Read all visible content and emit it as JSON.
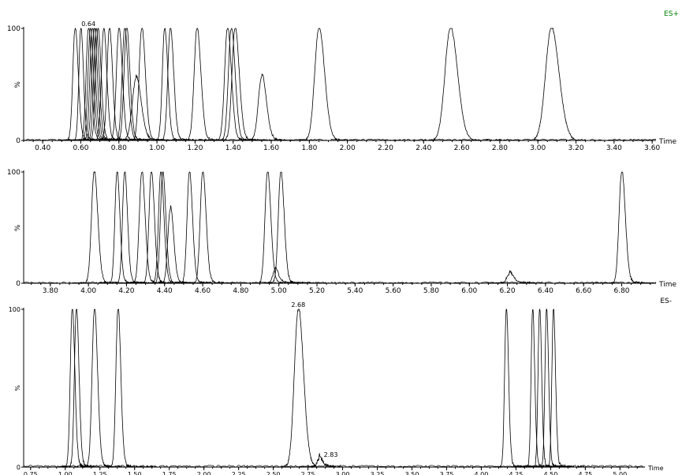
{
  "chart_data": [
    {
      "type": "line",
      "mode_label": "ES+",
      "mode_color": "#008000",
      "xlabel": "Time",
      "ylabel": "%",
      "xlim": [
        0.3,
        3.62
      ],
      "ylim": [
        0,
        100
      ],
      "x_ticks": [
        "0.40",
        "0.60",
        "0.80",
        "1.00",
        "1.20",
        "1.40",
        "1.60",
        "1.80",
        "2.00",
        "2.20",
        "2.40",
        "2.60",
        "2.80",
        "3.00",
        "3.20",
        "3.40",
        "3.60"
      ],
      "y_ticks": [
        "0",
        "%",
        "100"
      ],
      "annotations": [
        {
          "x": 0.64,
          "label": "0.64"
        }
      ],
      "peaks": [
        {
          "rt": 0.57,
          "height": 100,
          "width": 0.012
        },
        {
          "rt": 0.6,
          "height": 100,
          "width": 0.01
        },
        {
          "rt": 0.64,
          "height": 100,
          "width": 0.012
        },
        {
          "rt": 0.65,
          "height": 100,
          "width": 0.012
        },
        {
          "rt": 0.66,
          "height": 100,
          "width": 0.012
        },
        {
          "rt": 0.67,
          "height": 100,
          "width": 0.012
        },
        {
          "rt": 0.68,
          "height": 100,
          "width": 0.012
        },
        {
          "rt": 0.69,
          "height": 100,
          "width": 0.012
        },
        {
          "rt": 0.72,
          "height": 100,
          "width": 0.012
        },
        {
          "rt": 0.75,
          "height": 100,
          "width": 0.012
        },
        {
          "rt": 0.8,
          "height": 100,
          "width": 0.013
        },
        {
          "rt": 0.83,
          "height": 100,
          "width": 0.013
        },
        {
          "rt": 0.84,
          "height": 100,
          "width": 0.013
        },
        {
          "rt": 0.89,
          "height": 55,
          "width": 0.02
        },
        {
          "rt": 0.92,
          "height": 100,
          "width": 0.014
        },
        {
          "rt": 1.04,
          "height": 100,
          "width": 0.012
        },
        {
          "rt": 1.07,
          "height": 100,
          "width": 0.013
        },
        {
          "rt": 1.21,
          "height": 100,
          "width": 0.015
        },
        {
          "rt": 1.37,
          "height": 100,
          "width": 0.015
        },
        {
          "rt": 1.39,
          "height": 100,
          "width": 0.015
        },
        {
          "rt": 1.41,
          "height": 100,
          "width": 0.016
        },
        {
          "rt": 1.55,
          "height": 57,
          "width": 0.018
        },
        {
          "rt": 1.85,
          "height": 100,
          "width": 0.022
        },
        {
          "rt": 2.54,
          "height": 100,
          "width": 0.028
        },
        {
          "rt": 3.07,
          "height": 100,
          "width": 0.03
        }
      ]
    },
    {
      "type": "line",
      "xlabel": "Time",
      "ylabel": "%",
      "xlim": [
        3.66,
        6.98
      ],
      "ylim": [
        0,
        100
      ],
      "x_ticks": [
        "3.80",
        "4.00",
        "4.20",
        "4.40",
        "4.60",
        "4.80",
        "5.00",
        "5.20",
        "5.40",
        "5.60",
        "5.80",
        "6.00",
        "6.20",
        "6.40",
        "6.60",
        "6.80"
      ],
      "y_ticks": [
        "0",
        "%",
        "100"
      ],
      "peaks": [
        {
          "rt": 4.03,
          "height": 100,
          "width": 0.014
        },
        {
          "rt": 4.15,
          "height": 100,
          "width": 0.011
        },
        {
          "rt": 4.19,
          "height": 100,
          "width": 0.011
        },
        {
          "rt": 4.28,
          "height": 100,
          "width": 0.013
        },
        {
          "rt": 4.33,
          "height": 100,
          "width": 0.012
        },
        {
          "rt": 4.38,
          "height": 100,
          "width": 0.012
        },
        {
          "rt": 4.39,
          "height": 100,
          "width": 0.012
        },
        {
          "rt": 4.43,
          "height": 67,
          "width": 0.013
        },
        {
          "rt": 4.53,
          "height": 100,
          "width": 0.012
        },
        {
          "rt": 4.6,
          "height": 100,
          "width": 0.013
        },
        {
          "rt": 4.94,
          "height": 100,
          "width": 0.013
        },
        {
          "rt": 4.98,
          "height": 12,
          "width": 0.012
        },
        {
          "rt": 5.01,
          "height": 100,
          "width": 0.013
        },
        {
          "rt": 6.21,
          "height": 8,
          "width": 0.014
        },
        {
          "rt": 6.8,
          "height": 100,
          "width": 0.014
        }
      ]
    },
    {
      "type": "line",
      "mode_label": "ES-",
      "mode_color": "#000000",
      "xlabel": "Time",
      "ylabel": "%",
      "xlim": [
        0.7,
        5.18
      ],
      "ylim": [
        0,
        100
      ],
      "x_ticks": [
        "0.75",
        "1.00",
        "1.25",
        "1.50",
        "1.75",
        "2.00",
        "2.25",
        "2.50",
        "2.75",
        "3.00",
        "3.25",
        "3.50",
        "3.75",
        "4.00",
        "4.25",
        "4.50",
        "4.75",
        "5.00"
      ],
      "y_ticks": [
        "0",
        "%",
        "100"
      ],
      "annotations": [
        {
          "x": 2.68,
          "label": "2.68"
        },
        {
          "x": 2.83,
          "label": "2.83"
        }
      ],
      "peaks": [
        {
          "rt": 1.05,
          "height": 100,
          "width": 0.014
        },
        {
          "rt": 1.08,
          "height": 100,
          "width": 0.014
        },
        {
          "rt": 1.21,
          "height": 100,
          "width": 0.017
        },
        {
          "rt": 1.38,
          "height": 100,
          "width": 0.015
        },
        {
          "rt": 2.68,
          "height": 100,
          "width": 0.028
        },
        {
          "rt": 2.83,
          "height": 5,
          "width": 0.015
        },
        {
          "rt": 4.18,
          "height": 100,
          "width": 0.012
        },
        {
          "rt": 4.37,
          "height": 100,
          "width": 0.011
        },
        {
          "rt": 4.42,
          "height": 100,
          "width": 0.011
        },
        {
          "rt": 4.47,
          "height": 100,
          "width": 0.011
        },
        {
          "rt": 4.52,
          "height": 100,
          "width": 0.011
        }
      ]
    }
  ]
}
